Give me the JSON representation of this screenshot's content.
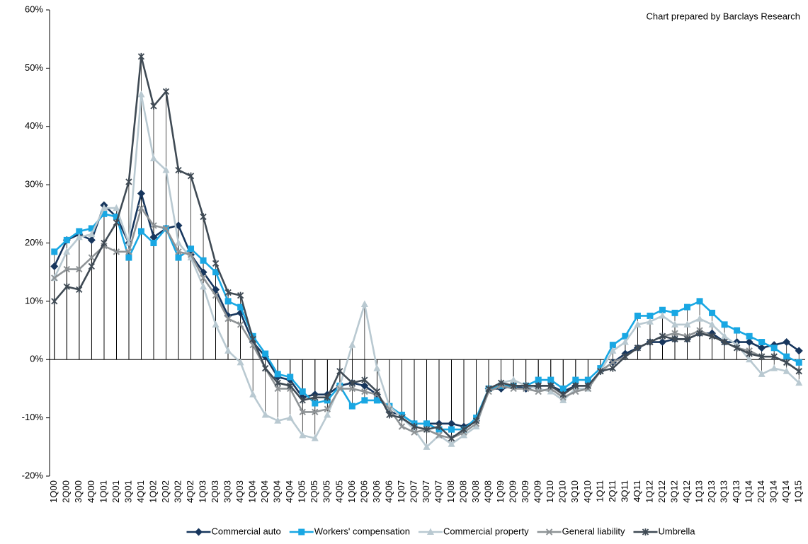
{
  "chart_data": {
    "type": "line",
    "annotation": "Chart prepared by Barclays Research",
    "categories": [
      "1Q00",
      "2Q00",
      "3Q00",
      "4Q00",
      "1Q01",
      "2Q01",
      "3Q01",
      "4Q01",
      "1Q02",
      "2Q02",
      "3Q02",
      "4Q02",
      "1Q03",
      "2Q03",
      "3Q03",
      "4Q03",
      "1Q04",
      "2Q04",
      "3Q04",
      "4Q04",
      "1Q05",
      "2Q05",
      "3Q05",
      "4Q05",
      "1Q06",
      "2Q06",
      "3Q06",
      "4Q06",
      "1Q07",
      "2Q07",
      "3Q07",
      "4Q07",
      "1Q08",
      "2Q08",
      "3Q08",
      "4Q08",
      "1Q09",
      "2Q09",
      "3Q09",
      "4Q09",
      "1Q10",
      "2Q10",
      "3Q10",
      "4Q10",
      "1Q11",
      "2Q11",
      "3Q11",
      "4Q11",
      "1Q12",
      "2Q12",
      "3Q12",
      "4Q12",
      "1Q13",
      "2Q13",
      "3Q13",
      "4Q13",
      "1Q14",
      "2Q14",
      "3Q14",
      "4Q14",
      "1Q15"
    ],
    "series": [
      {
        "name": "Commercial auto",
        "color": "#17365d",
        "marker": "diamond",
        "values": [
          16,
          20.5,
          21.5,
          20.5,
          26.5,
          24.5,
          20,
          28.5,
          21,
          22.5,
          23,
          18,
          15,
          12,
          7.5,
          8,
          3,
          0.5,
          -3,
          -3.5,
          -6.5,
          -6,
          -6,
          -4.5,
          -4,
          -4.5,
          -6,
          -9,
          -9.5,
          -11,
          -11,
          -11,
          -11,
          -11.5,
          -10.5,
          -5,
          -5,
          -4.5,
          -5,
          -4.5,
          -4.5,
          -5.5,
          -4.5,
          -4.5,
          -2,
          -0.5,
          1,
          2,
          3,
          3,
          3.5,
          3.5,
          4.5,
          4.5,
          3,
          3,
          3,
          2,
          2.5,
          3,
          1.5
        ]
      },
      {
        "name": "Workers' compensation",
        "color": "#19a7e3",
        "marker": "square",
        "values": [
          18.5,
          20.5,
          22,
          22.5,
          25,
          24.5,
          17.5,
          22,
          20,
          22.5,
          17.5,
          19,
          17,
          15,
          10,
          9,
          4,
          1,
          -2.5,
          -3,
          -5.5,
          -7.5,
          -7,
          -4.5,
          -8,
          -7,
          -7,
          -8,
          -9.5,
          -11,
          -11,
          -12,
          -12,
          -12,
          -10,
          -5,
          -4.5,
          -4.5,
          -4.5,
          -3.5,
          -3.5,
          -5,
          -3.5,
          -3.5,
          -1.5,
          2.5,
          4,
          7.5,
          7.5,
          8.5,
          8,
          9,
          10,
          8,
          6,
          5,
          4,
          3,
          2,
          0.5,
          -0.5
        ]
      },
      {
        "name": "Commercial property",
        "color": "#b9c9d1",
        "marker": "triangle",
        "values": [
          14,
          18.5,
          21,
          21.5,
          26,
          26,
          20,
          45.5,
          34.5,
          32.5,
          20,
          17.5,
          12.5,
          6,
          1.5,
          -0.5,
          -6,
          -9.5,
          -10.5,
          -10,
          -13,
          -13.5,
          -9.5,
          -4.5,
          2.5,
          9.5,
          -1.5,
          -8,
          -10,
          -12,
          -15,
          -13,
          -14.5,
          -13,
          -11.5,
          -5,
          -4,
          -3.5,
          -4.5,
          -5,
          -5.5,
          -7,
          -5,
          -5,
          -2,
          1.5,
          3,
          6,
          6.5,
          7.5,
          6,
          6,
          7,
          6,
          4,
          2.5,
          0,
          -2.5,
          -1.5,
          -2,
          -4
        ]
      },
      {
        "name": "General liability",
        "color": "#8e9396",
        "marker": "x",
        "values": [
          14,
          15.5,
          15.5,
          17.5,
          19.5,
          18.5,
          18.5,
          26,
          23,
          22.5,
          18.5,
          18,
          14,
          11,
          7,
          6,
          2.5,
          -1.5,
          -5,
          -5,
          -9,
          -9,
          -8.5,
          -5,
          -5,
          -5.5,
          -6,
          -8.5,
          -11.5,
          -12.5,
          -12,
          -13,
          -13.5,
          -12.5,
          -11,
          -5.5,
          -4.5,
          -5,
          -5,
          -5.5,
          -5,
          -6.5,
          -5.5,
          -5,
          -2,
          -0.5,
          0.5,
          2,
          3,
          4,
          4.5,
          4,
          5,
          4,
          3,
          2,
          1.5,
          0.5,
          0.5,
          -0.5,
          -2
        ]
      },
      {
        "name": "Umbrella",
        "color": "#3f4a54",
        "marker": "star",
        "values": [
          10,
          12.5,
          12,
          16,
          20,
          23.5,
          30.5,
          52,
          43.5,
          46,
          32.5,
          31.5,
          24.5,
          16.5,
          11.5,
          11,
          3.5,
          -1.5,
          -4,
          -4.5,
          -7,
          -6.5,
          -6.5,
          -2,
          -4,
          -3.5,
          -5.5,
          -9.5,
          -10,
          -11.5,
          -12,
          -11.5,
          -13.5,
          -12,
          -10.5,
          -5,
          -4,
          -4.5,
          -4.5,
          -4.5,
          -4.5,
          -6,
          -4.5,
          -4.5,
          -2,
          -1.5,
          0.5,
          2,
          3,
          4,
          3.5,
          3.5,
          4.5,
          4,
          3,
          2,
          1,
          0.5,
          0.5,
          -0.5,
          -2
        ]
      }
    ],
    "ylim": [
      -20,
      60
    ],
    "yticks": [
      {
        "value": -20,
        "label": "-20%"
      },
      {
        "value": -10,
        "label": "-10%"
      },
      {
        "value": 0,
        "label": "0%"
      },
      {
        "value": 10,
        "label": "10%"
      },
      {
        "value": 20,
        "label": "20%"
      },
      {
        "value": 30,
        "label": "30%"
      },
      {
        "value": 40,
        "label": "40%"
      },
      {
        "value": 50,
        "label": "50%"
      },
      {
        "value": 60,
        "label": "60%"
      }
    ],
    "drop_lines": true,
    "legend": "bottom"
  }
}
